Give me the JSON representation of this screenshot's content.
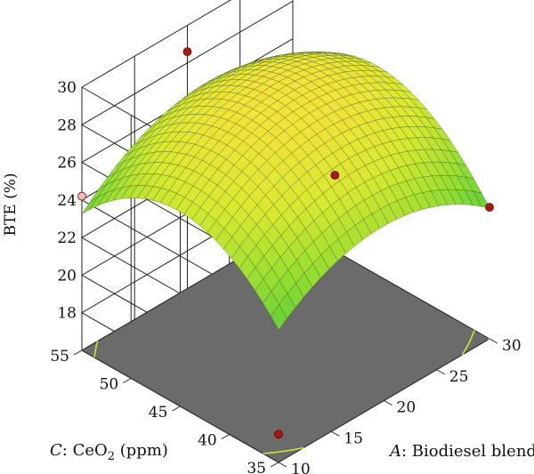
{
  "chart_data": {
    "type": "surface3d",
    "z_axis": {
      "label": "BTE (%)",
      "ticks": [
        "18",
        "20",
        "22",
        "24",
        "26",
        "28",
        "30"
      ],
      "range": [
        16,
        30
      ]
    },
    "a_axis": {
      "label_prefix": "A",
      "label_text": ": Biodiesel blend",
      "ticks": [
        "10",
        "15",
        "20",
        "25",
        "30"
      ],
      "range": [
        10,
        30
      ]
    },
    "c_axis": {
      "label_prefix": "C",
      "label_text": ": CeO",
      "label_sub": "2",
      "label_unit": " (ppm)",
      "ticks": [
        "35",
        "40",
        "45",
        "50",
        "55"
      ],
      "range": [
        35,
        55
      ]
    },
    "surface": {
      "model": "quadratic",
      "coefficients": {
        "b0": 29.0,
        "a_lin": 0.35,
        "a_quad": 2.3,
        "c_lin": 0.5,
        "c_quad": 3.2,
        "ac": 0.4
      },
      "grid": 25,
      "colormap": [
        "#1ea34a",
        "#44c83a",
        "#8fdc32",
        "#d8e830",
        "#f5e23a"
      ]
    },
    "contours": {
      "levels": [
        19,
        20,
        21,
        22,
        23,
        24
      ]
    },
    "design_points": [
      {
        "a": 10,
        "c": 35,
        "bte": 17.5,
        "above": true
      },
      {
        "a": 10,
        "c": 55,
        "bte": 24.2,
        "above": false
      },
      {
        "a": 20,
        "c": 55,
        "bte": 28.6,
        "above": true
      },
      {
        "a": 20,
        "c": 45,
        "bte": 21.5,
        "above": false
      },
      {
        "a": 30,
        "c": 45,
        "bte": 21.8,
        "above": false
      },
      {
        "a": 30,
        "c": 35,
        "bte": 23.0,
        "above": true
      },
      {
        "a": 30,
        "c": 55,
        "bte": 28.5,
        "above": true
      },
      {
        "a": 20,
        "c": 40,
        "bte": 26.5,
        "above": true
      }
    ],
    "colors": {
      "floor": "#6b6b6b",
      "contour": "#c8e632",
      "point_above": "#b0140e",
      "point_below": "#f3b8b3",
      "grid": "#222222",
      "mesh": "#3a5a20"
    }
  }
}
